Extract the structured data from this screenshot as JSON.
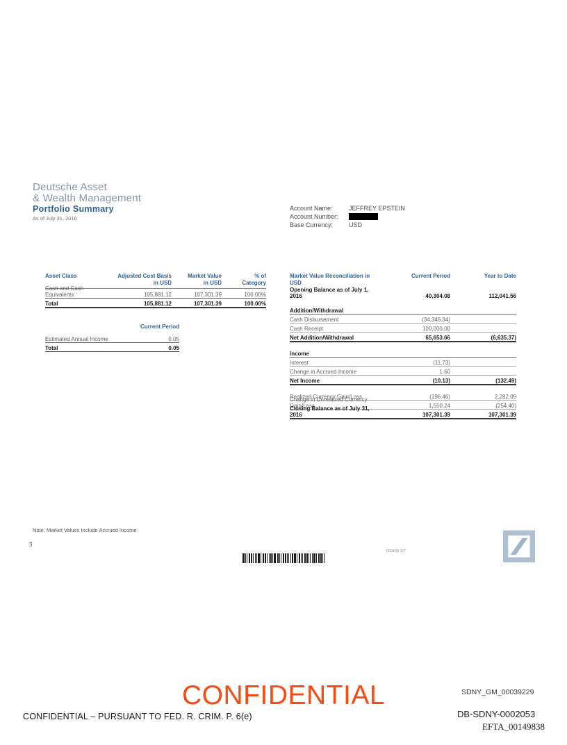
{
  "colors": {
    "header_blue": "#2d5f97",
    "brand_blue": "#8295aa",
    "confidential_orange": "#fb4a10",
    "logo_frame_blue": "#aebfd2",
    "logo_slash_blue": "#9fb4cb"
  },
  "header": {
    "brand": "Deutsche Asset\n& Wealth Management",
    "title": "Portfolio Summary",
    "as_of": "As of July 31, 2016"
  },
  "account": {
    "name_label": "Account Name:",
    "name_value": "JEFFREY EPSTEIN",
    "number_label": "Account Number:",
    "number_value": "[REDACTED]",
    "currency_label": "Base Currency:",
    "currency_value": "USD"
  },
  "asset_table": {
    "headers": [
      "Asset Class",
      "Adjusted Cost Basis\nin USD",
      "Market Value\nin USD",
      "% of\nCategory"
    ],
    "rows": [
      {
        "label": "Cash and Cash Equivalents",
        "cols": [
          "105,881.12",
          "107,301.39",
          "100.00%"
        ],
        "style": "normal"
      },
      {
        "label": "Total",
        "cols": [
          "105,881.12",
          "107,301.39",
          "100.00%"
        ],
        "style": "total"
      }
    ]
  },
  "income_table": {
    "header": "Current Period",
    "rows": [
      {
        "label": "Estimated Annual Income",
        "cols": [
          "0.05"
        ],
        "style": "normal"
      },
      {
        "label": "Total",
        "cols": [
          "0.05"
        ],
        "style": "total"
      }
    ]
  },
  "reconciliation_table": {
    "headers": [
      "Market Value Reconciliation in USD",
      "Current Period",
      "Year to Date"
    ],
    "rows": [
      {
        "label": "Opening Balance as of July 1, 2016",
        "cols": [
          "40,304.08",
          "112,041.56"
        ],
        "style": "opening"
      },
      {
        "style": "spacer"
      },
      {
        "label": "Addition/Withdrawal",
        "cols": [
          "",
          ""
        ],
        "style": "section"
      },
      {
        "label": "Cash Disbursement",
        "cols": [
          "(34,346.34)",
          ""
        ],
        "style": "normal"
      },
      {
        "label": "Cash Receipt",
        "cols": [
          "100,000.00",
          ""
        ],
        "style": "normal"
      },
      {
        "label": "Net Addition/Withdrawal",
        "cols": [
          "65,653.66",
          "(6,635.37)"
        ],
        "style": "total"
      },
      {
        "style": "spacer"
      },
      {
        "label": "Income",
        "cols": [
          "",
          ""
        ],
        "style": "section"
      },
      {
        "label": "Interest",
        "cols": [
          "(11.73)",
          ""
        ],
        "style": "normal"
      },
      {
        "label": "Change in Accrued Income",
        "cols": [
          "1.60",
          ""
        ],
        "style": "normal"
      },
      {
        "label": "Net Income",
        "cols": [
          "(10.13)",
          "(132.49)"
        ],
        "style": "total"
      },
      {
        "style": "spacer"
      },
      {
        "label": "Realized Currency Gain/Loss",
        "cols": [
          "(196.46)",
          "2,282.09"
        ],
        "style": "normal"
      },
      {
        "label": "Change in Unrealized Currency Gain/Loss",
        "cols": [
          "1,550.24",
          "(254.40)"
        ],
        "style": "normal"
      },
      {
        "label": "Closing Balance as of July 31, 2016",
        "cols": [
          "107,301.39",
          "107,301.39"
        ],
        "style": "total"
      }
    ]
  },
  "footer": {
    "note": "Note: Market Values Include Accrued Income",
    "page_number": "3",
    "doc_ref": "000169 2/7",
    "logo_name": "deutsche-bank-logo"
  },
  "stamps": {
    "confidential_large": "CONFIDENTIAL",
    "legal_line": "CONFIDENTIAL – PURSUANT TO FED. R. CRIM. P. 6(e)",
    "bates_top": "SDNY_GM_00039229",
    "bates_mid": "DB-SDNY-0002053",
    "bates_bottom": "EFTA_00149838"
  }
}
